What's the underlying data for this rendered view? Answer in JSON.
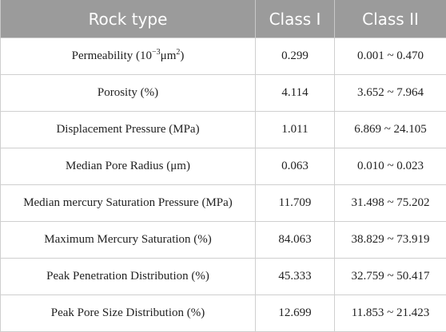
{
  "table": {
    "headers": [
      "Rock type",
      "Class I",
      "Class II"
    ],
    "rows": [
      {
        "property_pre": "Permeability (10",
        "property_sup": "−3",
        "property_post": "μm",
        "property_sup2": "2",
        "property_end": ")",
        "class1": "0.299",
        "class2": "0.001 ~ 0.470"
      },
      {
        "property": "Porosity (%)",
        "class1": "4.114",
        "class2": "3.652 ~ 7.964"
      },
      {
        "property": "Displacement Pressure (MPa)",
        "class1": "1.011",
        "class2": "6.869 ~ 24.105"
      },
      {
        "property": "Median Pore Radius (μm)",
        "class1": "0.063",
        "class2": "0.010 ~ 0.023"
      },
      {
        "property": "Median mercury Saturation Pressure (MPa)",
        "class1": "11.709",
        "class2": "31.498 ~ 75.202"
      },
      {
        "property": "Maximum Mercury Saturation (%)",
        "class1": "84.063",
        "class2": "38.829 ~ 73.919"
      },
      {
        "property": "Peak Penetration Distribution (%)",
        "class1": "45.333",
        "class2": "32.759 ~ 50.417"
      },
      {
        "property": "Peak Pore Size Distribution (%)",
        "class1": "12.699",
        "class2": "11.853 ~ 21.423"
      }
    ]
  }
}
